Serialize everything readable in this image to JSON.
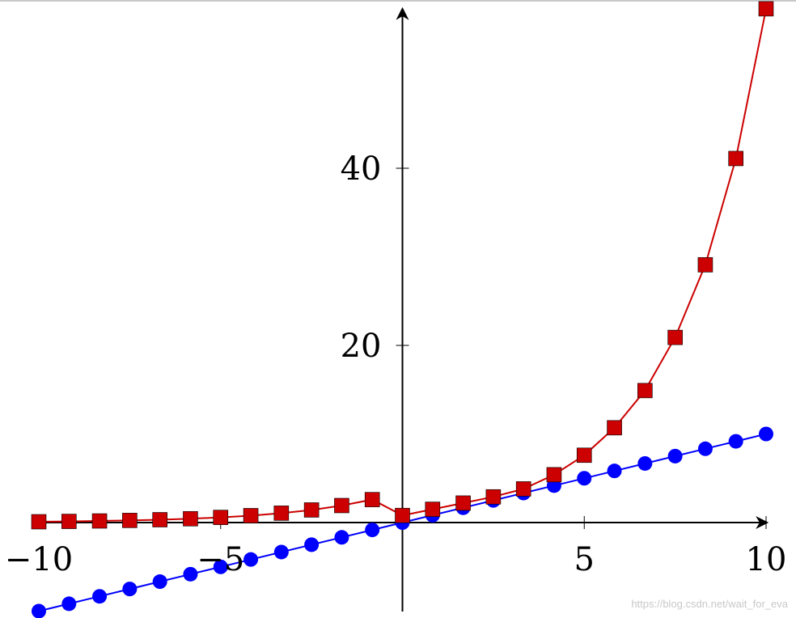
{
  "chart_data": {
    "type": "line",
    "title": "",
    "xlabel": "",
    "ylabel": "",
    "xlim": [
      -10,
      10
    ],
    "ylim": [
      -10,
      58
    ],
    "x_ticks": [
      -10,
      -5,
      5,
      10
    ],
    "x_tick_labels": [
      "−10",
      "−5",
      "5",
      "10"
    ],
    "y_ticks": [
      20,
      40
    ],
    "y_tick_labels": [
      "20",
      "40"
    ],
    "axis_lines": "middle",
    "grid": false,
    "legend": "none",
    "series": [
      {
        "color": "#0000ff",
        "marker": "circle",
        "x": [
          -10,
          -9.17,
          -8.33,
          -7.5,
          -6.67,
          -5.83,
          -5,
          -4.17,
          -3.33,
          -2.5,
          -1.67,
          -0.83,
          0,
          0.83,
          1.67,
          2.5,
          3.33,
          4.17,
          5,
          5.83,
          6.67,
          7.5,
          8.33,
          9.17,
          10
        ],
        "y": [
          -10,
          -9.17,
          -8.33,
          -7.5,
          -6.67,
          -5.83,
          -5,
          -4.17,
          -3.33,
          -2.5,
          -1.67,
          -0.83,
          0,
          0.83,
          1.67,
          2.5,
          3.33,
          4.17,
          5,
          5.83,
          6.67,
          7.5,
          8.33,
          9.17,
          10
        ]
      },
      {
        "color": "#cc0000",
        "marker": "square",
        "x": [
          -10,
          -9.17,
          -8.33,
          -7.5,
          -6.67,
          -5.83,
          -5,
          -4.17,
          -3.33,
          -2.5,
          -1.67,
          -0.83,
          0,
          0.83,
          1.67,
          2.5,
          3.33,
          4.17,
          5,
          5.83,
          6.67,
          7.5,
          8.33,
          9.17,
          10
        ],
        "y": [
          0.09,
          0.13,
          0.18,
          0.24,
          0.32,
          0.43,
          0.58,
          0.78,
          1.06,
          1.42,
          1.92,
          2.59,
          0.8,
          1.5,
          2.2,
          2.9,
          3.8,
          5.4,
          7.6,
          10.7,
          14.9,
          20.9,
          29.1,
          41.1,
          58
        ]
      }
    ]
  },
  "watermark": "https://blog.csdn.net/wait_for_eva"
}
